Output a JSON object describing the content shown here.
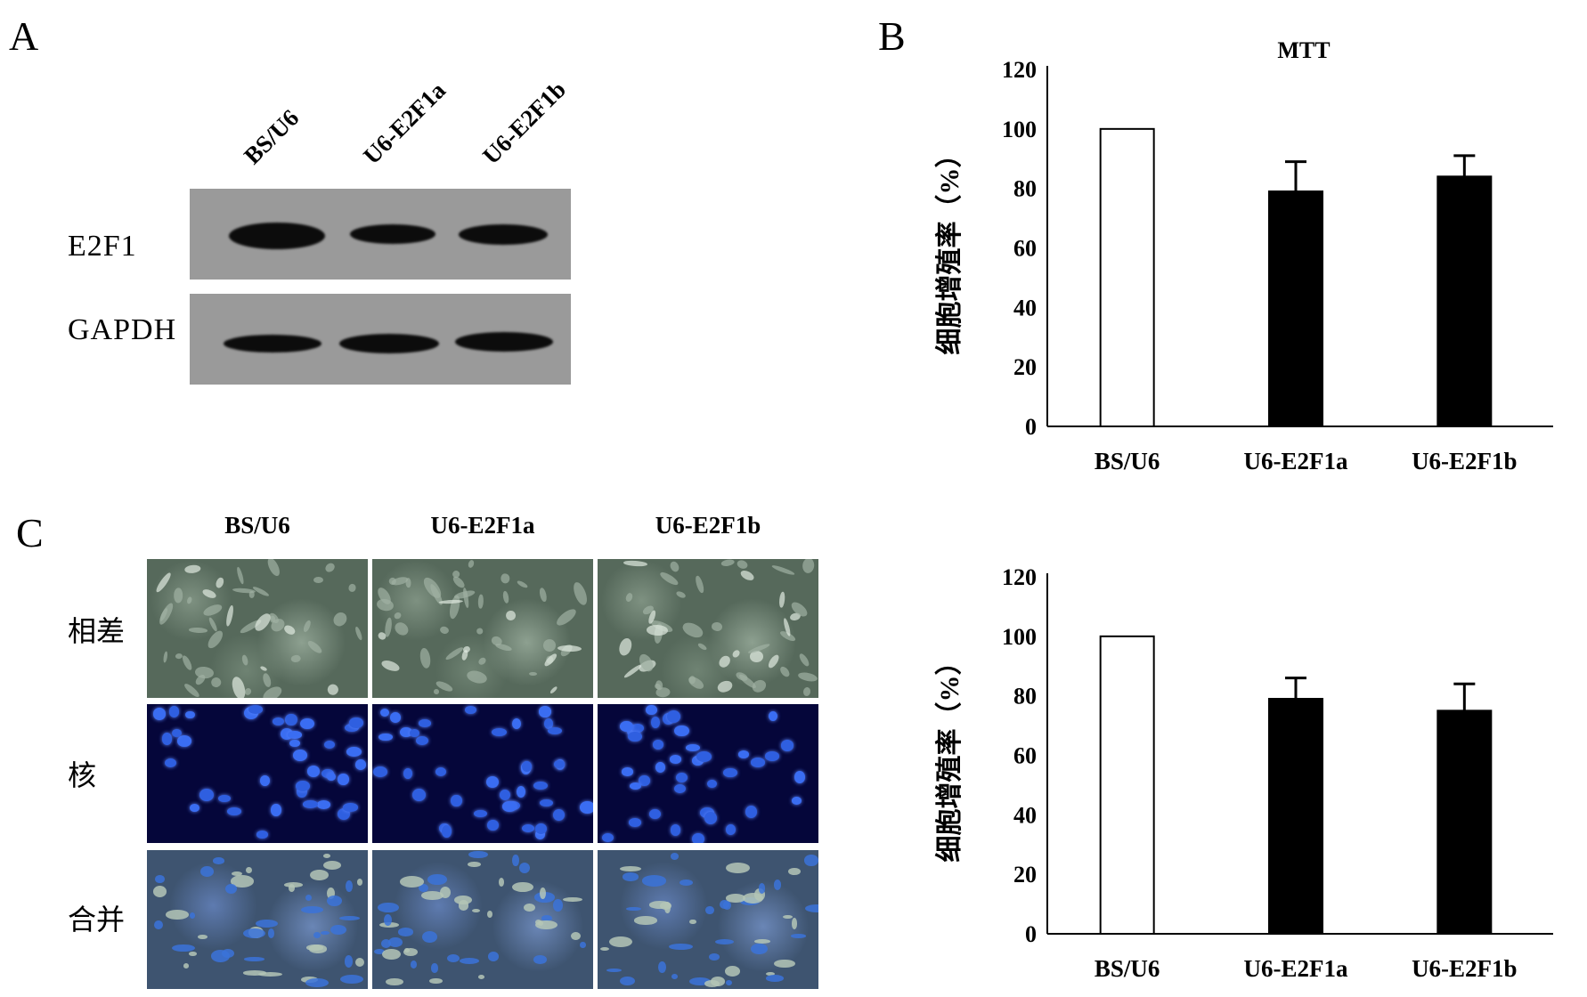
{
  "panels": {
    "a": "A",
    "b": "B",
    "c": "C"
  },
  "western_blot": {
    "lanes": [
      "BS/U6",
      "U6-E2F1a",
      "U6-E2F1b"
    ],
    "rows": [
      {
        "label": "E2F1",
        "band_intensity": [
          1.0,
          0.75,
          0.8
        ]
      },
      {
        "label": "GAPDH",
        "band_intensity": [
          0.9,
          0.95,
          0.95
        ]
      }
    ]
  },
  "microscopy": {
    "columns": [
      "BS/U6",
      "U6-E2F1a",
      "U6-E2F1b"
    ],
    "rows": [
      "相差",
      "核",
      "合并"
    ]
  },
  "chart_data": [
    {
      "type": "bar",
      "title": "MTT",
      "ylabel": "细胞增殖率（%）",
      "xlabel": "",
      "categories": [
        "BS/U6",
        "U6-E2F1a",
        "U6-E2F1b"
      ],
      "values": [
        100,
        79,
        84
      ],
      "errors": [
        0,
        10,
        7
      ],
      "bar_colors": [
        "#ffffff",
        "#000000",
        "#000000"
      ],
      "ylim": [
        0,
        120
      ],
      "yticks": [
        "0",
        "20",
        "40",
        "60",
        "80",
        "100",
        "120"
      ]
    },
    {
      "type": "bar",
      "title": "",
      "ylabel": "细胞增殖率（%）",
      "xlabel": "",
      "categories": [
        "BS/U6",
        "U6-E2F1a",
        "U6-E2F1b"
      ],
      "values": [
        100,
        79,
        75
      ],
      "errors": [
        0,
        7,
        9
      ],
      "bar_colors": [
        "#ffffff",
        "#000000",
        "#000000"
      ],
      "ylim": [
        0,
        120
      ],
      "yticks": [
        "0",
        "20",
        "40",
        "60",
        "80",
        "100",
        "120"
      ]
    }
  ]
}
